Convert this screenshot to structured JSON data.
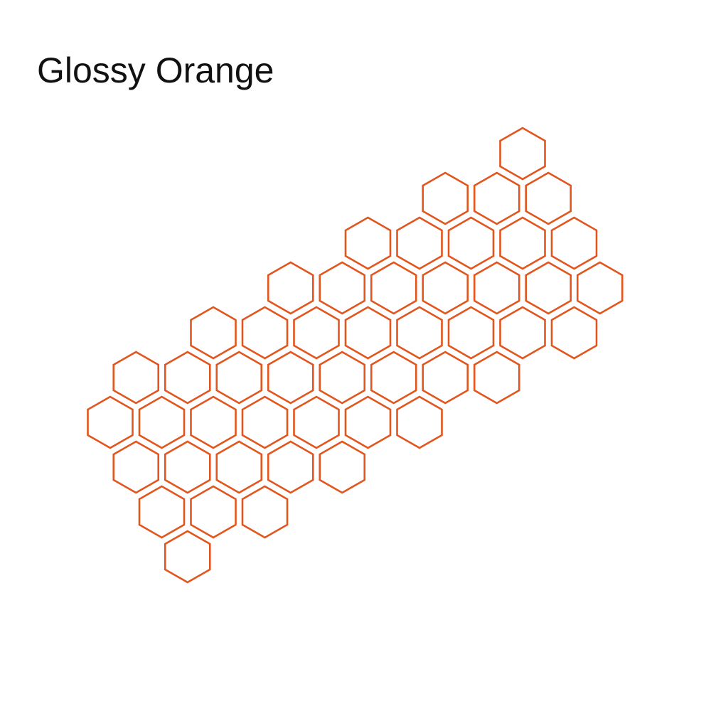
{
  "product": {
    "title": "Glossy Orange",
    "color": "#e2561e",
    "shape": "hexagon-outline",
    "hexagon_count": 48
  }
}
